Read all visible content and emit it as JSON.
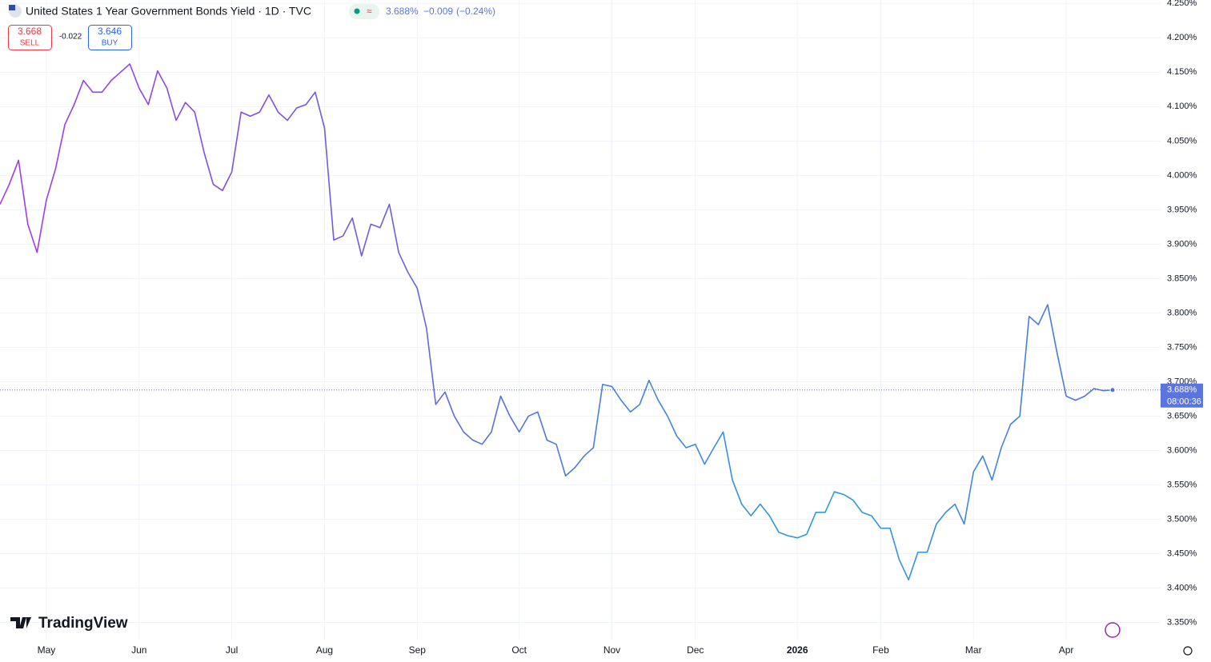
{
  "chart_data": {
    "type": "line",
    "title": "United States 1 Year Government Bonds Yield · 1D · TVC",
    "header_price": "3.688%",
    "header_change": "−0.009",
    "header_change_pct": "(−0.24%)",
    "sell_price": "3.668",
    "sell_label": "SELL",
    "spread": "-0.022",
    "buy_price": "3.646",
    "buy_label": "BUY",
    "watermark": "TradingView",
    "countdown": "08:00:36",
    "last_price": {
      "value": 3.688,
      "label": "3.688%"
    },
    "categories": [
      null,
      null,
      null,
      null,
      null,
      "May",
      null,
      null,
      null,
      null,
      null,
      null,
      null,
      null,
      null,
      "Jun",
      null,
      null,
      null,
      null,
      null,
      null,
      null,
      null,
      null,
      "Jul",
      null,
      null,
      null,
      null,
      null,
      null,
      null,
      null,
      null,
      "Aug",
      null,
      null,
      null,
      null,
      null,
      null,
      null,
      null,
      null,
      "Sep",
      null,
      null,
      null,
      null,
      null,
      null,
      null,
      null,
      null,
      null,
      "Oct",
      null,
      null,
      null,
      null,
      null,
      null,
      null,
      null,
      null,
      "Nov",
      null,
      null,
      null,
      null,
      null,
      null,
      null,
      null,
      "Dec",
      null,
      null,
      null,
      null,
      null,
      null,
      null,
      null,
      null,
      null,
      "2026",
      null,
      null,
      null,
      null,
      null,
      null,
      null,
      null,
      "Feb",
      null,
      null,
      null,
      null,
      null,
      null,
      null,
      null,
      null,
      "Mar",
      null,
      null,
      null,
      null,
      null,
      null,
      null,
      null,
      null,
      "Apr",
      null,
      null,
      null,
      null,
      null
    ],
    "series": [
      {
        "name": "United States 1 Year Government Bonds Yield",
        "colors": [
          "#a43ae6",
          "#7b52e3",
          "#4f78dd",
          "#2a9ddb",
          "#5470e0"
        ],
        "values": [
          3.958,
          3.987,
          4.022,
          3.929,
          3.888,
          3.964,
          4.01,
          4.074,
          4.103,
          4.138,
          4.121,
          4.121,
          4.138,
          4.15,
          4.162,
          4.127,
          4.103,
          4.152,
          4.127,
          4.08,
          4.106,
          4.092,
          4.034,
          3.987,
          3.978,
          4.005,
          4.092,
          4.086,
          4.092,
          4.117,
          4.092,
          4.08,
          4.098,
          4.103,
          4.121,
          4.069,
          3.906,
          3.912,
          3.938,
          3.883,
          3.929,
          3.924,
          3.958,
          3.888,
          3.859,
          3.836,
          3.778,
          3.667,
          3.685,
          3.65,
          3.627,
          3.615,
          3.609,
          3.627,
          3.679,
          3.65,
          3.627,
          3.65,
          3.656,
          3.615,
          3.609,
          3.563,
          3.575,
          3.592,
          3.604,
          3.696,
          3.693,
          3.673,
          3.656,
          3.667,
          3.702,
          3.673,
          3.65,
          3.621,
          3.604,
          3.609,
          3.58,
          3.604,
          3.627,
          3.557,
          3.522,
          3.505,
          3.522,
          3.505,
          3.481,
          3.476,
          3.473,
          3.478,
          3.51,
          3.51,
          3.54,
          3.536,
          3.528,
          3.51,
          3.505,
          3.487,
          3.487,
          3.441,
          3.412,
          3.452,
          3.452,
          3.493,
          3.51,
          3.522,
          3.493,
          3.569,
          3.592,
          3.557,
          3.604,
          3.638,
          3.65,
          3.795,
          3.783,
          3.812,
          3.743,
          3.679,
          3.673,
          3.679,
          3.69,
          3.687,
          3.688
        ]
      }
    ],
    "ylim": [
      3.325,
      4.255
    ],
    "yticks": [
      {
        "value": 3.35,
        "label": "3.350%"
      },
      {
        "value": 3.4,
        "label": "3.400%"
      },
      {
        "value": 3.45,
        "label": "3.450%"
      },
      {
        "value": 3.5,
        "label": "3.500%"
      },
      {
        "value": 3.55,
        "label": "3.550%"
      },
      {
        "value": 3.6,
        "label": "3.600%"
      },
      {
        "value": 3.65,
        "label": "3.650%"
      },
      {
        "value": 3.7,
        "label": "3.700%"
      },
      {
        "value": 3.75,
        "label": "3.750%"
      },
      {
        "value": 3.8,
        "label": "3.800%"
      },
      {
        "value": 3.85,
        "label": "3.850%"
      },
      {
        "value": 3.9,
        "label": "3.900%"
      },
      {
        "value": 3.95,
        "label": "3.950%"
      },
      {
        "value": 4.0,
        "label": "4.000%"
      },
      {
        "value": 4.05,
        "label": "4.050%"
      },
      {
        "value": 4.1,
        "label": "4.100%"
      },
      {
        "value": 4.15,
        "label": "4.150%"
      },
      {
        "value": 4.2,
        "label": "4.200%"
      },
      {
        "value": 4.25,
        "label": "4.250%"
      }
    ],
    "grid": true
  }
}
